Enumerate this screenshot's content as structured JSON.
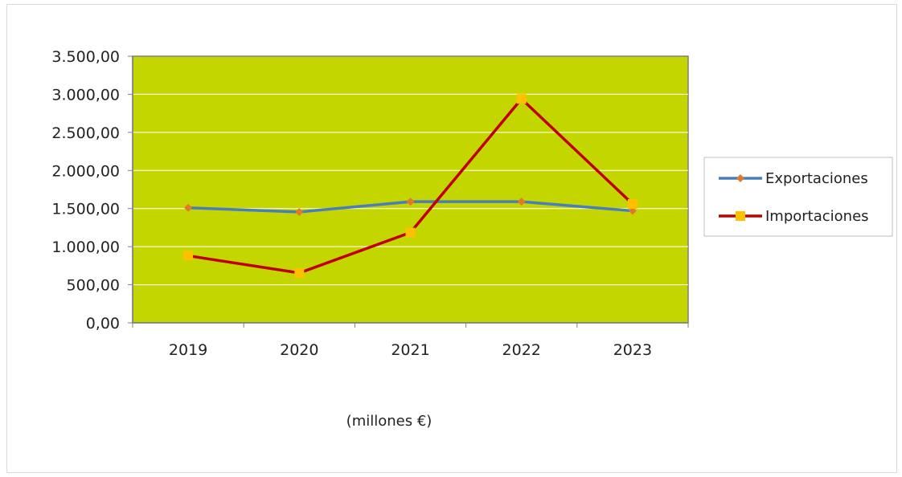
{
  "chart_data": {
    "type": "line",
    "categories": [
      "2019",
      "2020",
      "2021",
      "2022",
      "2023"
    ],
    "series": [
      {
        "name": "Exportaciones",
        "values": [
          1510,
          1455,
          1590,
          1590,
          1470
        ],
        "color": "#4a7ebb",
        "marker": "diamond",
        "marker_color": "#e07a2a"
      },
      {
        "name": "Importaciones",
        "values": [
          880,
          655,
          1185,
          2940,
          1560
        ],
        "color": "#c00000",
        "marker": "square",
        "marker_color": "#ffc000"
      }
    ],
    "ylim": [
      0,
      3500
    ],
    "yticks": [
      0,
      500,
      1000,
      1500,
      2000,
      2500,
      3000,
      3500
    ],
    "ytick_labels": [
      "0,00",
      "500,00",
      "1.000,00",
      "1.500,00",
      "2.000,00",
      "2.500,00",
      "3.000,00",
      "3.500,00"
    ],
    "xlabel": "(millones €)",
    "plot_background": "#c4d600",
    "grid": true,
    "legend_position": "right"
  }
}
